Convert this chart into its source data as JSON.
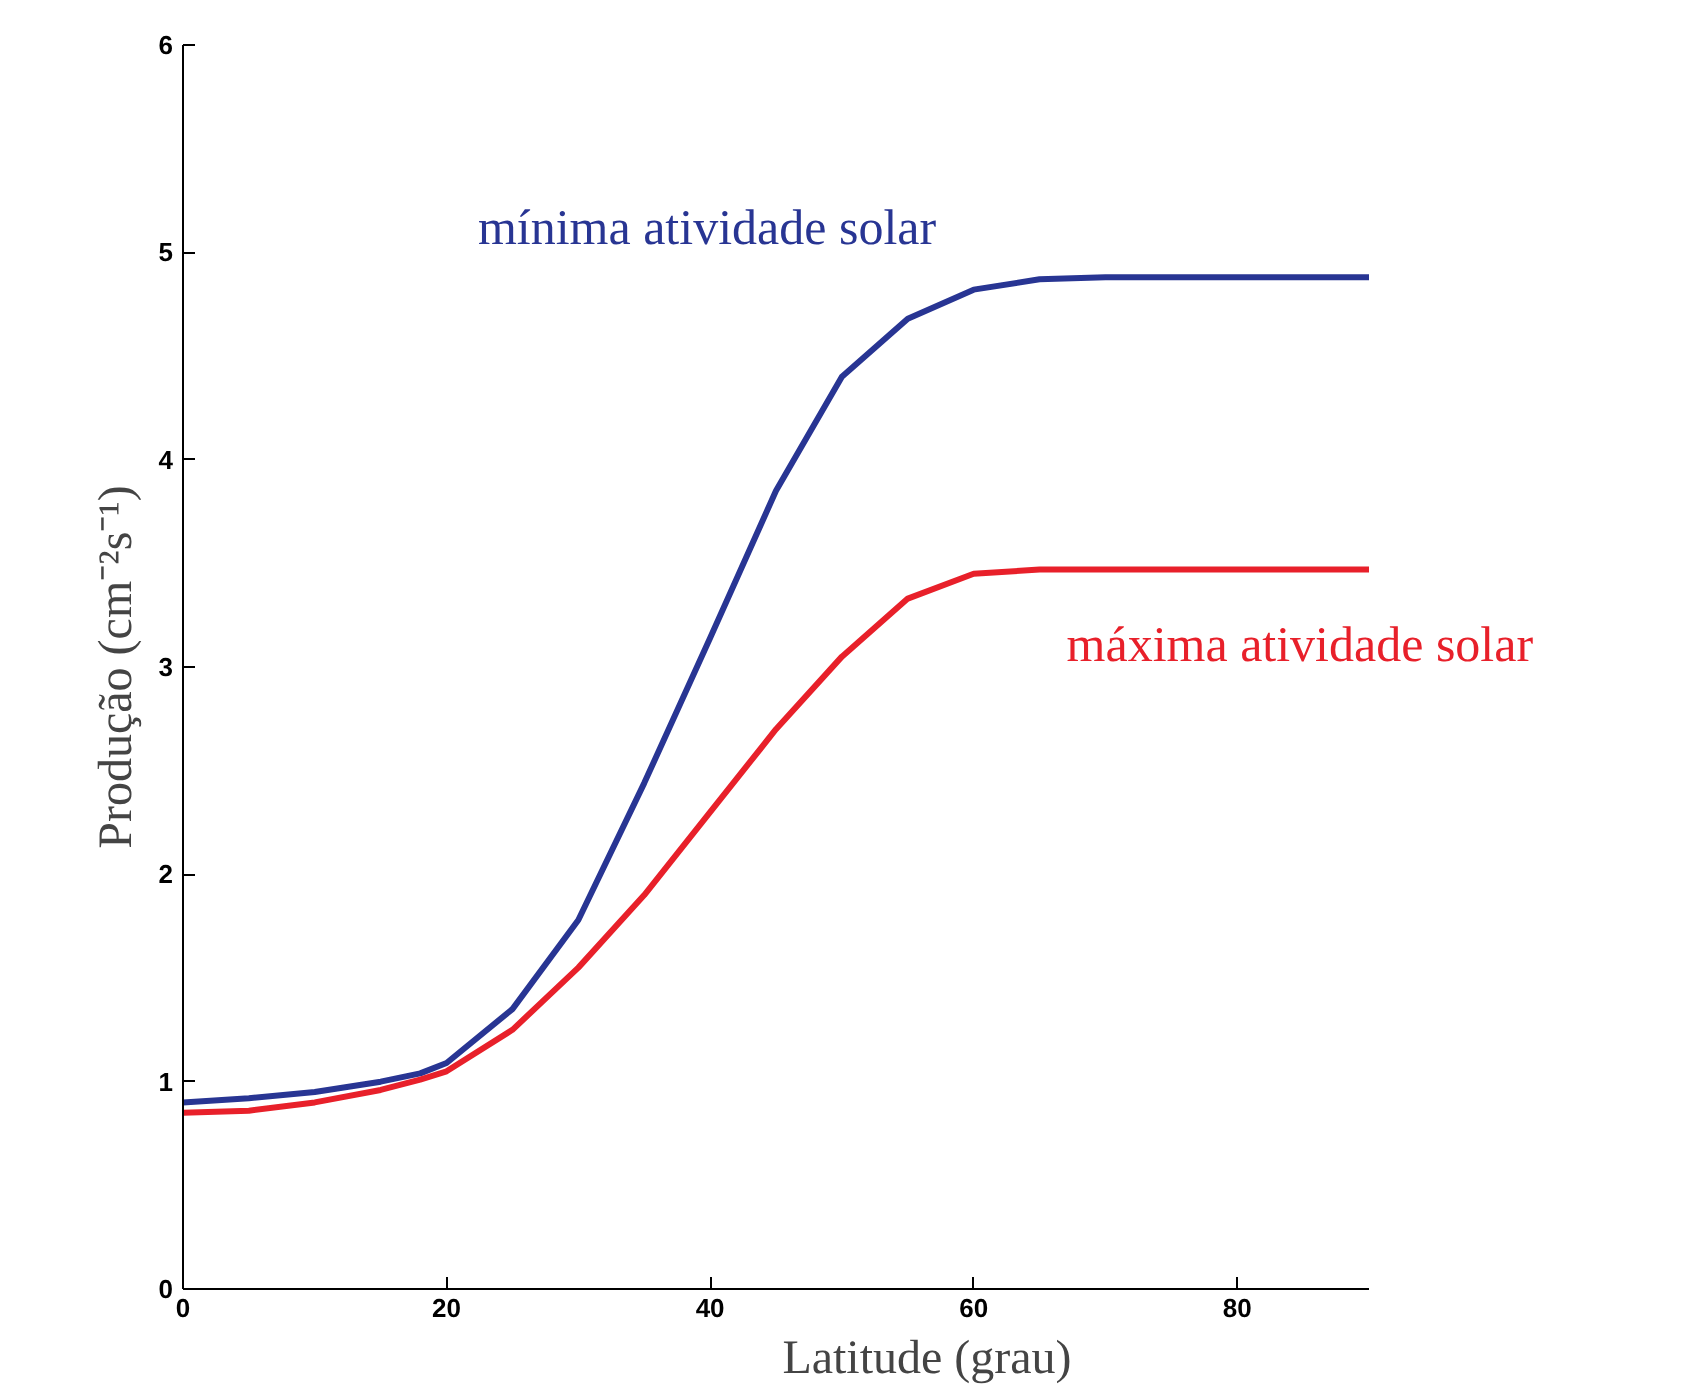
{
  "chart_data": {
    "type": "line",
    "xlabel": "Latitude (grau)",
    "ylabel": "Produção (cm⁻²s⁻¹)",
    "x": [
      0,
      5,
      10,
      15,
      18,
      20,
      25,
      30,
      35,
      40,
      45,
      50,
      55,
      60,
      65,
      70,
      80,
      90
    ],
    "series": [
      {
        "name": "mínima atividade solar",
        "color": "#283593",
        "values": [
          0.9,
          0.92,
          0.95,
          1.0,
          1.04,
          1.09,
          1.35,
          1.78,
          2.44,
          3.14,
          3.85,
          4.4,
          4.68,
          4.82,
          4.87,
          4.88,
          4.88,
          4.88
        ]
      },
      {
        "name": "máxima atividade solar",
        "color": "#e8202a",
        "values": [
          0.85,
          0.86,
          0.9,
          0.96,
          1.01,
          1.05,
          1.25,
          1.55,
          1.9,
          2.3,
          2.7,
          3.05,
          3.33,
          3.45,
          3.47,
          3.47,
          3.47,
          3.47
        ]
      }
    ],
    "xlim": [
      0,
      90
    ],
    "ylim": [
      0,
      6
    ],
    "xticks": [
      0,
      20,
      40,
      60,
      80
    ],
    "yticks": [
      0,
      1,
      2,
      3,
      4,
      5,
      6
    ],
    "grid": false,
    "marker": "none",
    "line_style": "solid"
  }
}
